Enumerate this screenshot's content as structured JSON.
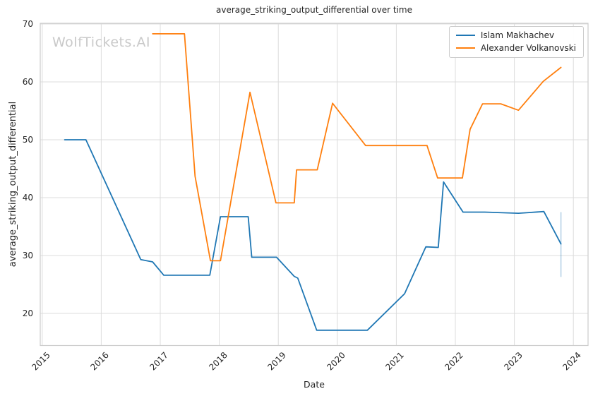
{
  "watermark": "WolfTickets.AI",
  "chart_data": {
    "type": "line",
    "title": "average_striking_output_differential over time",
    "xlabel": "Date",
    "ylabel": "average_striking_output_differential",
    "xlim": [
      2014.966,
      2024.249
    ],
    "ylim": [
      14.45,
      70.12
    ],
    "x_ticks": [
      2015,
      2016,
      2017,
      2018,
      2019,
      2020,
      2021,
      2022,
      2023,
      2024
    ],
    "y_ticks": [
      20,
      30,
      40,
      50,
      60,
      70
    ],
    "grid": true,
    "grid_color": "#dcdcdc",
    "spine_color": "#cccccc",
    "legend_position": "upper right",
    "series": [
      {
        "name": "Islam Makhachev",
        "color": "#1f77b4",
        "points": [
          [
            2015.38,
            50.0
          ],
          [
            2015.74,
            50.0
          ],
          [
            2016.67,
            29.3
          ],
          [
            2016.87,
            28.9
          ],
          [
            2017.06,
            26.6
          ],
          [
            2017.84,
            26.6
          ],
          [
            2018.02,
            36.7
          ],
          [
            2018.49,
            36.7
          ],
          [
            2018.55,
            29.7
          ],
          [
            2018.97,
            29.7
          ],
          [
            2019.27,
            26.4
          ],
          [
            2019.33,
            26.1
          ],
          [
            2019.65,
            17.1
          ],
          [
            2020.51,
            17.1
          ],
          [
            2021.14,
            23.4
          ],
          [
            2021.5,
            31.5
          ],
          [
            2021.71,
            31.4
          ],
          [
            2021.8,
            42.7
          ],
          [
            2022.13,
            37.5
          ],
          [
            2022.5,
            37.5
          ],
          [
            2023.07,
            37.3
          ],
          [
            2023.5,
            37.6
          ],
          [
            2023.79,
            32.0
          ]
        ]
      },
      {
        "name": "Alexander Volkanovski",
        "color": "#ff7f0e",
        "points": [
          [
            2016.87,
            68.3
          ],
          [
            2017.41,
            68.3
          ],
          [
            2017.59,
            43.7
          ],
          [
            2017.85,
            29.1
          ],
          [
            2018.02,
            29.1
          ],
          [
            2018.52,
            58.2
          ],
          [
            2018.96,
            39.1
          ],
          [
            2019.27,
            39.1
          ],
          [
            2019.31,
            44.8
          ],
          [
            2019.66,
            44.8
          ],
          [
            2019.92,
            56.3
          ],
          [
            2020.48,
            49.0
          ],
          [
            2021.52,
            49.0
          ],
          [
            2021.7,
            43.4
          ],
          [
            2022.12,
            43.4
          ],
          [
            2022.25,
            51.8
          ],
          [
            2022.46,
            56.2
          ],
          [
            2022.77,
            56.2
          ],
          [
            2023.07,
            55.1
          ],
          [
            2023.49,
            60.1
          ],
          [
            2023.79,
            62.5
          ]
        ]
      }
    ],
    "error_bar": {
      "series": "Islam Makhachev",
      "x": 2023.79,
      "y_min": 26.3,
      "y_max": 37.5,
      "color": "rgba(31,119,180,0.35)"
    }
  }
}
